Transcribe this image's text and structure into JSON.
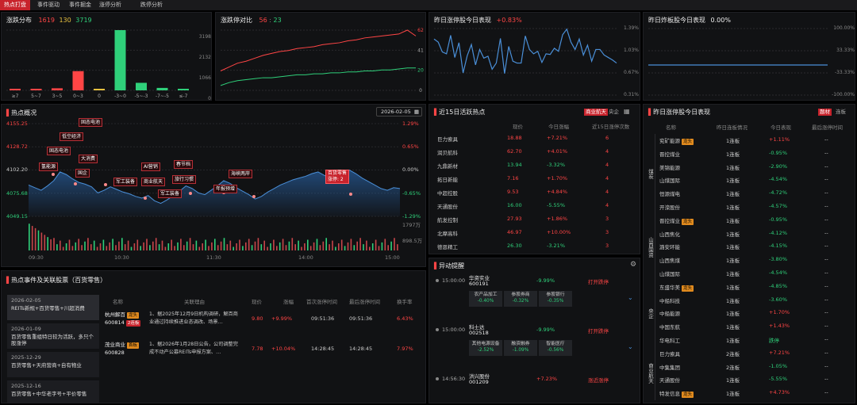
{
  "tabs": [
    "热点打盘",
    "事件驱动",
    "事件掘金",
    "涨停分析",
    "跌停分析"
  ],
  "distribution": {
    "title": "涨跌分布",
    "up_count": "1619",
    "flat_count": "130",
    "down_count": "3719",
    "y_labels": [
      "3198",
      "2132",
      "1066",
      "0"
    ]
  },
  "limit_compare": {
    "title": "涨跌停对比",
    "up": "56",
    "down": "23",
    "right_labels": [
      "62",
      "41",
      "20",
      "0"
    ]
  },
  "yest_up": {
    "title": "昨日涨停股今日表现",
    "pct": "+0.83%",
    "y_labels": [
      "1.39%",
      "1.03%",
      "0.67%",
      "0.31%"
    ]
  },
  "yest_broken": {
    "title": "昨日炸板股今日表现",
    "pct": "0.00%",
    "y_labels": [
      "100.00%",
      "33.33%",
      "-33.33%",
      "-100.00%"
    ]
  },
  "overview": {
    "title": "热点概况",
    "date": "2026-02-05",
    "y_left": [
      "4155.25",
      "4128.72",
      "4102.20",
      "4075.68",
      "4049.15"
    ],
    "y_right": [
      "1.29%",
      "0.65%",
      "0.00%",
      "-0.65%",
      "-1.29%"
    ],
    "vol_labels": [
      "1797万",
      "898.5万"
    ],
    "x_labels": [
      "09:30",
      "10:30",
      "11:30",
      "14:00",
      "15:00"
    ],
    "events": [
      "固态电池",
      "低空经济",
      "固态电池",
      "氢能源",
      "大消费",
      "国企",
      "军工装备",
      "商业航天",
      "AI营销",
      "春节档",
      "旅行习惯",
      "军工装备",
      "年报预增",
      "海峡两岸",
      "百货零售\n涨停: 2"
    ]
  },
  "chart_data": [
    {
      "type": "bar",
      "title": "涨跌分布",
      "categories": [
        "≥7",
        "5~7",
        "3~5",
        "0~3",
        "0",
        "-3~0",
        "-5~-3",
        "-7~-5",
        "≤-7"
      ],
      "values": [
        40,
        15,
        110,
        1020,
        80,
        3198,
        400,
        130,
        80
      ],
      "ylim": [
        0,
        3198
      ]
    },
    {
      "type": "line",
      "title": "涨跌停对比",
      "series": [
        {
          "values": [
            20,
            24,
            28,
            30,
            33,
            36,
            38,
            40,
            41,
            43,
            44,
            45,
            47,
            48,
            49,
            51,
            52,
            54,
            55,
            56,
            57,
            58,
            62,
            56
          ]
        },
        {
          "values": [
            5,
            8,
            10,
            11,
            12,
            13,
            13,
            14,
            15,
            16,
            16,
            17,
            17,
            18,
            18,
            19,
            19,
            20,
            20,
            21,
            21,
            22,
            23,
            23
          ]
        }
      ],
      "ylim": [
        0,
        62
      ]
    },
    {
      "type": "line",
      "title": "昨日涨停股今日表现",
      "values": [
        1.22,
        1.17,
        1.01,
        0.98,
        1.28,
        0.92,
        1.16,
        0.67,
        0.95,
        1.13,
        0.8,
        1.05,
        0.91,
        0.94,
        0.73,
        0.83,
        1.23,
        0.66,
        1.1,
        0.86,
        0.83,
        0.83,
        1.27,
        1.05,
        0.98,
        1.02,
        0.84,
        0.98,
        0.97,
        1.07,
        1.02,
        1.29,
        1.38,
        1.17,
        1.05,
        1.22,
        0.96,
        1.12,
        0.86,
        1.05,
        1.05,
        0.96,
        0.92,
        0.88,
        0.83
      ],
      "ylim": [
        0.31,
        1.39
      ]
    },
    {
      "type": "line",
      "title": "昨日炸板股今日表现",
      "values": [
        0,
        0
      ],
      "ylim": [
        -100,
        100
      ]
    },
    {
      "type": "area",
      "title": "热点概况",
      "values": [
        4085,
        4082,
        4079,
        4084,
        4090,
        4100,
        4097,
        4092,
        4088,
        4086,
        4083,
        4076,
        4079,
        4083,
        4080,
        4077,
        4075,
        4072,
        4070,
        4073,
        4067,
        4064,
        4068,
        4073,
        4078,
        4084,
        4081,
        4076,
        4074,
        4079,
        4084,
        4090,
        4087,
        4082,
        4078,
        4074,
        4069,
        4072,
        4077,
        4081,
        4085,
        4088,
        4091,
        4093,
        4095,
        4098,
        4100,
        4096,
        4093,
        4095,
        4099,
        4102,
        4098,
        4093,
        4089,
        4085,
        4081,
        4079,
        4082,
        4081
      ],
      "ylim": [
        4049.15,
        4155.25
      ]
    }
  ],
  "events_panel": {
    "title": "热点事件及关联股票（百货零售）",
    "dates": [
      {
        "date": "2026-02-05",
        "text": "REITs新规+百货零售+川超消费"
      },
      {
        "date": "2026-01-09",
        "text": "百货零售重组特日较为活跃，多只个股涨停"
      },
      {
        "date": "2025-12-29",
        "text": "百货零售+天府营商+自有物业"
      },
      {
        "date": "2025-12-16",
        "text": "百货零售+中华老字号+平价零售"
      }
    ],
    "headers": [
      "名称",
      "关联理由",
      "现价",
      "涨幅",
      "首次涨停时间",
      "最后涨停时间",
      "换手率"
    ],
    "rows": [
      {
        "name": "杭州解百",
        "code": "600814",
        "tag1": "龙头",
        "tag2": "2连板",
        "reason": "1、据2025年12月9日机构调研，解百商业通过持续推进业态调改、场景…",
        "price": "9.80",
        "chg": "+9.99%",
        "first": "09:51:36",
        "last": "09:51:36",
        "turn": "6.43%"
      },
      {
        "name": "茂业商业",
        "code": "600828",
        "tag1": "首板",
        "tag2": "",
        "reason": "1、据2026年1月28日公告，公司调整完成不动产公募REITs申报方案、…",
        "price": "7.78",
        "chg": "+10.04%",
        "first": "14:28:45",
        "last": "14:28:45",
        "turn": "7.97%"
      }
    ]
  },
  "hot15": {
    "title": "近15日活跃热点",
    "tag1": "商业航天",
    "tag2": "央企",
    "headers": [
      "",
      "现价",
      "今日涨幅",
      "近15日涨停次数"
    ],
    "rows": [
      [
        "巨力索具",
        "18.88",
        "+7.21%",
        "6"
      ],
      [
        "润贝航科",
        "62.70",
        "+4.01%",
        "4"
      ],
      [
        "九鼎新材",
        "13.94",
        "-3.32%",
        "4"
      ],
      [
        "拓日新能",
        "7.16",
        "+1.70%",
        "4"
      ],
      [
        "中超控股",
        "9.53",
        "+4.84%",
        "4"
      ],
      [
        "天通股份",
        "16.00",
        "-5.55%",
        "4"
      ],
      [
        "航发控制",
        "27.93",
        "+1.86%",
        "3"
      ],
      [
        "北摩高科",
        "46.97",
        "+10.00%",
        "3"
      ],
      [
        "德恩精工",
        "26.30",
        "-3.21%",
        "3"
      ]
    ]
  },
  "alerts": {
    "title": "异动提醒",
    "items": [
      {
        "time": "15:00:00",
        "name": "华资实业",
        "code": "600191",
        "chg": "-9.99%",
        "status": "打开跌停",
        "tags": [
          [
            "农产品加工",
            "-0.40%"
          ],
          [
            "参股券商",
            "-0.32%"
          ],
          [
            "参股银行",
            "-0.35%"
          ]
        ]
      },
      {
        "time": "15:00:00",
        "name": "科士达",
        "code": "002518",
        "chg": "-9.99%",
        "status": "打开跌停",
        "tags": [
          [
            "其他电源设备",
            "-2.52%"
          ],
          [
            "融资融券",
            "-1.09%"
          ],
          [
            "智能医疗",
            "-0.56%"
          ]
        ]
      },
      {
        "time": "14:56:30",
        "name": "洪兴股份",
        "code": "001209",
        "chg": "+7.23%",
        "status": "涨近涨停",
        "tags": []
      }
    ]
  },
  "yest_limit": {
    "title": "昨日涨停股今日表现",
    "tag1": "题材",
    "tag2": "连板",
    "headers": [
      "名称",
      "昨日连板情况",
      "今日表现",
      "最后涨停时间"
    ],
    "groups": [
      "煤炭",
      "山西国资",
      "央企",
      "商业航天"
    ],
    "rows": [
      [
        "兖矿能源",
        "龙头",
        "1连板",
        "+1.11%",
        "--"
      ],
      [
        "晋控煤业",
        "",
        "1连板",
        "-0.95%",
        "--"
      ],
      [
        "美锦能源",
        "",
        "1连板",
        "-2.90%",
        "--"
      ],
      [
        "山煤国际",
        "",
        "1连板",
        "-4.54%",
        "--"
      ],
      [
        "恒源煤电",
        "",
        "1连板",
        "-4.72%",
        "--"
      ],
      [
        "开滦股份",
        "",
        "1连板",
        "-4.57%",
        "--"
      ],
      [
        "晋控煤业",
        "龙头",
        "1连板",
        "-0.95%",
        "--"
      ],
      [
        "山西焦化",
        "",
        "1连板",
        "-4.12%",
        "--"
      ],
      [
        "潞安环能",
        "",
        "1连板",
        "-4.15%",
        "--"
      ],
      [
        "山西焦煤",
        "",
        "1连板",
        "-3.80%",
        "--"
      ],
      [
        "山煤国际",
        "",
        "1连板",
        "-4.54%",
        "--"
      ],
      [
        "东盛华美",
        "龙头",
        "1连板",
        "-4.85%",
        "--"
      ],
      [
        "中船科技",
        "",
        "1连板",
        "-3.60%",
        "--"
      ],
      [
        "中船能源",
        "",
        "1连板",
        "+1.70%",
        "--"
      ],
      [
        "中国东航",
        "",
        "1连板",
        "+1.43%",
        "--"
      ],
      [
        "华电科工",
        "",
        "1连板",
        "跌停",
        "--"
      ],
      [
        "巨力索具",
        "",
        "2连板",
        "+7.21%",
        "--"
      ],
      [
        "中集集团",
        "",
        "2连板",
        "-1.05%",
        "--"
      ],
      [
        "天通股份",
        "",
        "1连板",
        "-5.55%",
        "--"
      ],
      [
        "特发信息",
        "龙头",
        "1连板",
        "+4.73%",
        "--"
      ]
    ]
  }
}
